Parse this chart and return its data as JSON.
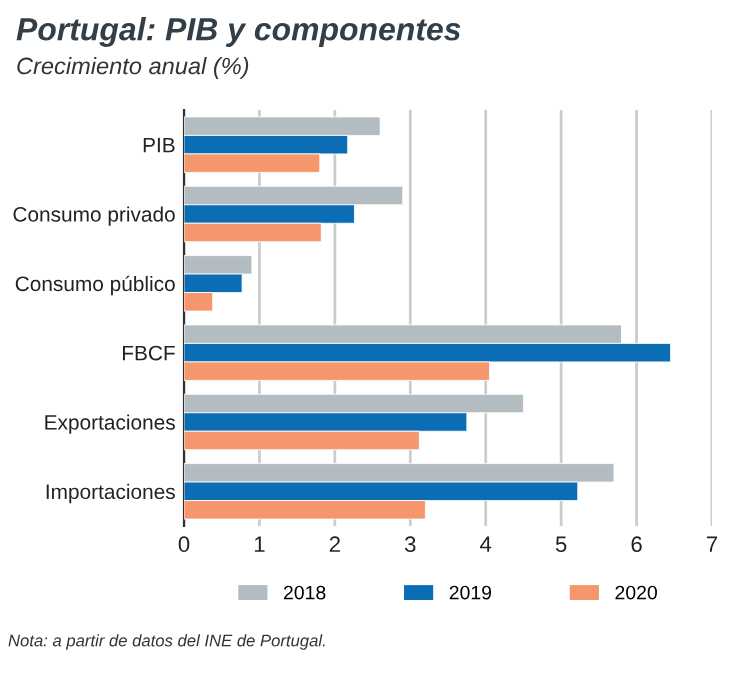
{
  "chart_data": {
    "type": "bar",
    "orientation": "horizontal",
    "title": "Portugal: PIB y componentes",
    "subtitle": "Crecimiento anual (%)",
    "categories": [
      "PIB",
      "Consumo privado",
      "Consumo público",
      "FBCF",
      "Exportaciones",
      "Importaciones"
    ],
    "series": [
      {
        "name": "2018",
        "color": "#b3bcc1",
        "values": [
          2.6,
          2.9,
          0.9,
          5.8,
          4.5,
          5.7
        ]
      },
      {
        "name": "2019",
        "color": "#0b6eb5",
        "values": [
          2.17,
          2.26,
          0.77,
          6.45,
          3.75,
          5.22
        ]
      },
      {
        "name": "2020",
        "color": "#f4976c",
        "values": [
          1.8,
          1.82,
          0.38,
          4.05,
          3.12,
          3.2
        ]
      }
    ],
    "xlim": [
      0,
      7
    ],
    "xticks": [
      0,
      1,
      2,
      3,
      4,
      5,
      6,
      7
    ],
    "grid": "x",
    "legend": "bottom",
    "annotations": [
      "Nota: a partir de datos del INE de Portugal."
    ]
  }
}
